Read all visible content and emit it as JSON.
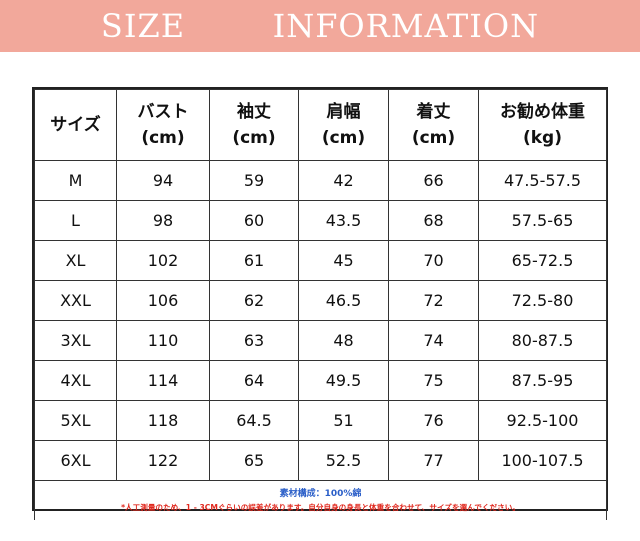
{
  "banner": {
    "title": "SIZE   INFORMATION"
  },
  "table": {
    "headers": [
      {
        "line1": "サイズ",
        "line2": ""
      },
      {
        "line1": "バスト",
        "line2": "(cm)"
      },
      {
        "line1": "袖丈",
        "line2": "(cm)"
      },
      {
        "line1": "肩幅",
        "line2": "(cm)"
      },
      {
        "line1": "着丈",
        "line2": "(cm)"
      },
      {
        "line1": "お勧め体重",
        "line2": "(kg)"
      }
    ],
    "rows": [
      [
        "M",
        "94",
        "59",
        "42",
        "66",
        "47.5-57.5"
      ],
      [
        "L",
        "98",
        "60",
        "43.5",
        "68",
        "57.5-65"
      ],
      [
        "XL",
        "102",
        "61",
        "45",
        "70",
        "65-72.5"
      ],
      [
        "XXL",
        "106",
        "62",
        "46.5",
        "72",
        "72.5-80"
      ],
      [
        "3XL",
        "110",
        "63",
        "48",
        "74",
        "80-87.5"
      ],
      [
        "4XL",
        "114",
        "64",
        "49.5",
        "75",
        "87.5-95"
      ],
      [
        "5XL",
        "118",
        "64.5",
        "51",
        "76",
        "92.5-100"
      ],
      [
        "6XL",
        "122",
        "65",
        "52.5",
        "77",
        "100-107.5"
      ]
    ]
  },
  "notes": {
    "material": "素材構成：100%綿",
    "warning": "*人工測量のため、1 - 3CMぐらいの誤差があります。自分自身の身長と体重を合わせて、サイズを選んでください。"
  },
  "colors": {
    "banner": "#f2a89b",
    "material_text": "#2a5ec8",
    "warning_text": "#e0281e"
  }
}
